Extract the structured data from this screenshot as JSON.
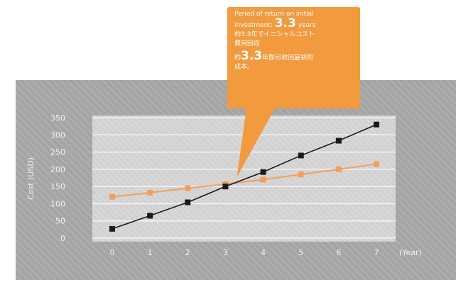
{
  "chart_data": {
    "type": "line",
    "x": [
      0,
      1,
      2,
      3,
      4,
      5,
      6,
      7
    ],
    "x_unit_label": "(Year)",
    "ylabel": "Cost (USD)",
    "ylim": [
      0,
      350
    ],
    "yticks": [
      0,
      50,
      100,
      150,
      200,
      250,
      300,
      350
    ],
    "grid": true,
    "series": [
      {
        "color": "#f0a05a",
        "marker": "square",
        "values": [
          120,
          132,
          145,
          157,
          170,
          185,
          200,
          215
        ]
      },
      {
        "color": "#1a1a1a",
        "marker": "square",
        "values": [
          27,
          65,
          104,
          150,
          192,
          240,
          283,
          330
        ]
      }
    ],
    "annotation": {
      "color": "#f29a3e",
      "line1": "Period of return on initial",
      "line2_prefix": "investment: ",
      "line2_value": "3.3",
      "line2_suffix": " years",
      "line3": "約3.3年でイニシャルコスト",
      "line4": "費用回収",
      "line5_prefix": "約",
      "line5_value": "3.3",
      "line5_suffix": "年即可收回最初的",
      "line6": "成本。",
      "point_x": 3.3
    },
    "colors": {
      "outer_bg": "#a5a5a5",
      "plot_bg": "#d2d2d2",
      "text": "#f2f2f2"
    }
  }
}
